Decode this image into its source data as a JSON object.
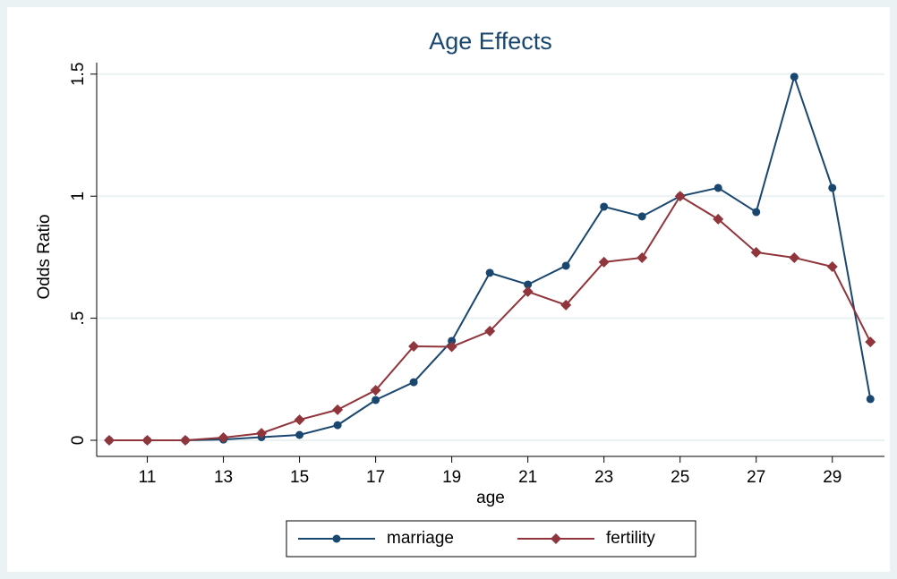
{
  "chart_data": {
    "type": "line",
    "title": "Age Effects",
    "x_label": "age",
    "y_label": "Odds Ratio",
    "x": [
      10,
      11,
      12,
      13,
      14,
      15,
      16,
      17,
      18,
      19,
      20,
      21,
      22,
      23,
      24,
      25,
      26,
      27,
      28,
      29,
      30
    ],
    "series": [
      {
        "name": "marriage",
        "color": "#1a476f",
        "marker": "circle",
        "values": [
          0,
          0,
          0,
          0.003,
          0.013,
          0.022,
          0.062,
          0.165,
          0.238,
          0.407,
          0.686,
          0.638,
          0.715,
          0.957,
          0.917,
          1.0,
          1.034,
          0.935,
          1.489,
          1.034,
          0.169
        ]
      },
      {
        "name": "fertility",
        "color": "#90353b",
        "marker": "diamond",
        "values": [
          0,
          0,
          0,
          0.011,
          0.029,
          0.084,
          0.125,
          0.205,
          0.385,
          0.383,
          0.447,
          0.609,
          0.554,
          0.73,
          0.748,
          1.0,
          0.906,
          0.77,
          0.748,
          0.711,
          0.403
        ]
      }
    ],
    "xlim": [
      9.67,
      30.37
    ],
    "ylim": [
      -0.066,
      1.547
    ],
    "xticks": [
      11,
      13,
      15,
      17,
      19,
      21,
      23,
      25,
      27,
      29
    ],
    "yticks": [
      0,
      {
        "value": 0.5,
        "label": ".5"
      },
      1,
      1.5
    ],
    "grid": true,
    "legend": "bottom"
  }
}
